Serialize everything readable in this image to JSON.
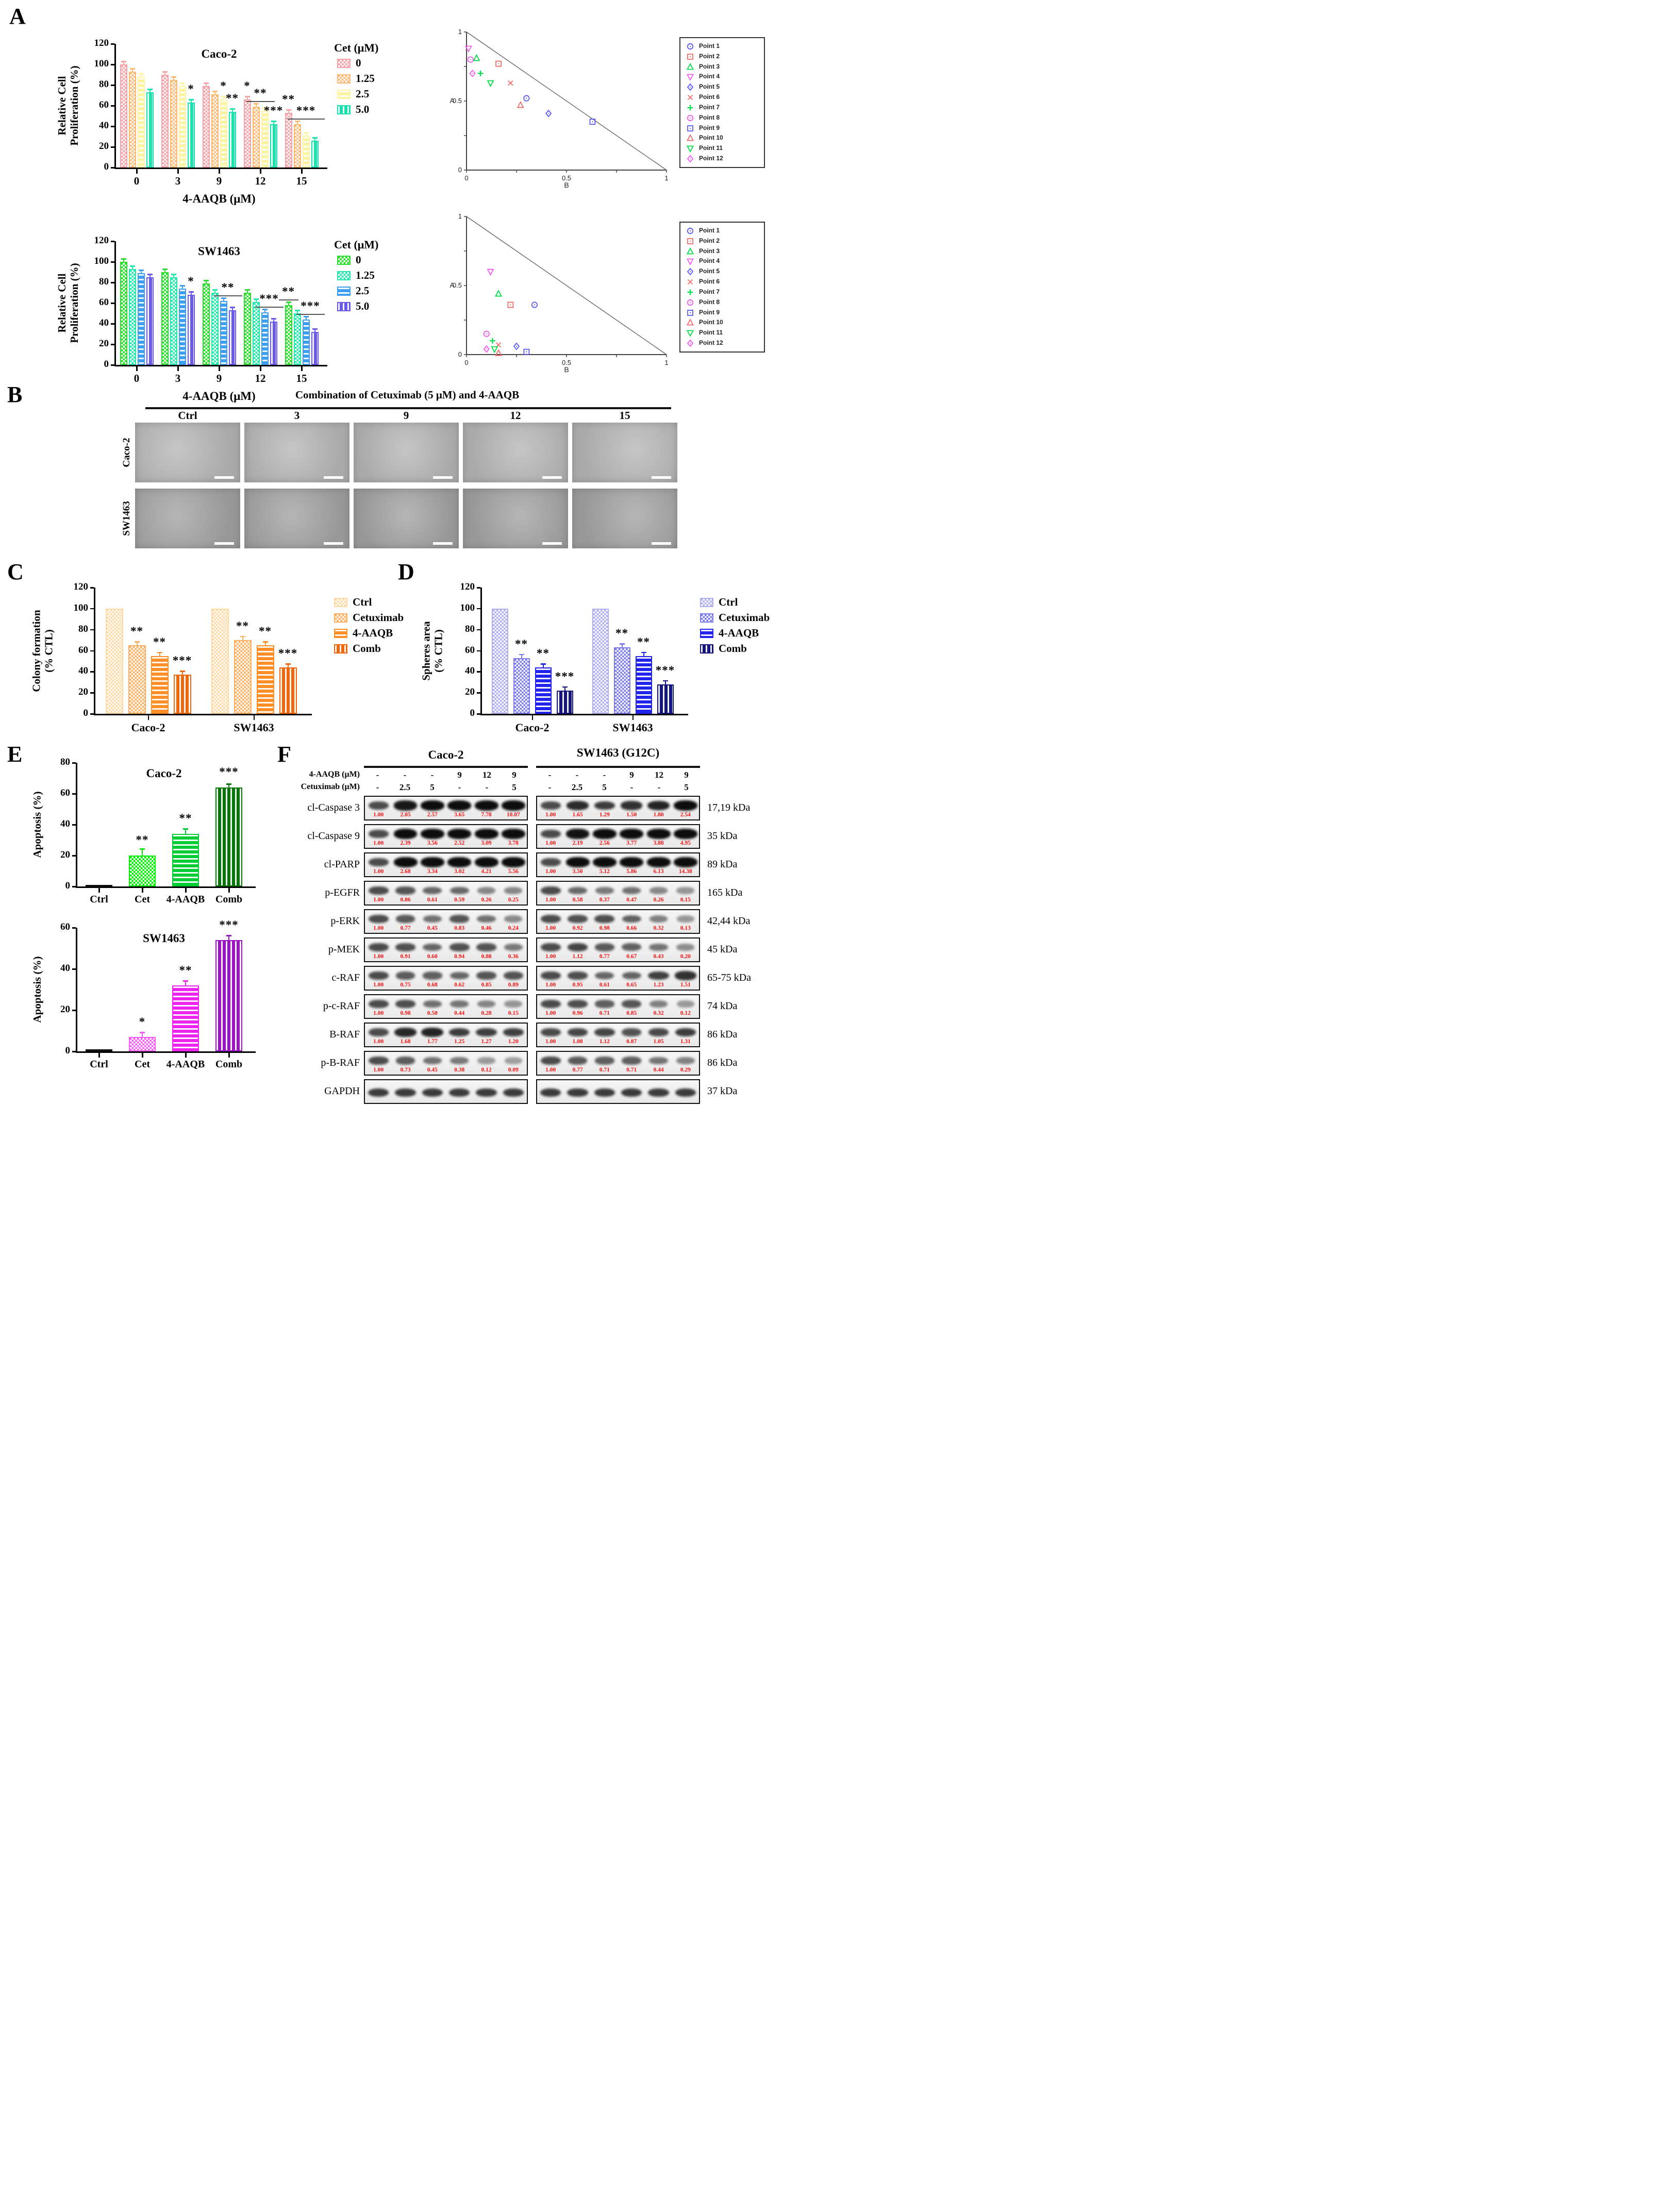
{
  "figure": {
    "panels": {
      "a": "A",
      "b": "B",
      "c": "C",
      "d": "D",
      "e": "E",
      "f": "F"
    }
  },
  "panel_b": {
    "title": "Combination of Cetuximab (5 μM) and 4-AAQB",
    "columns": [
      "Ctrl",
      "3",
      "9",
      "12",
      "15"
    ],
    "rows": [
      "Caco-2",
      "SW1463"
    ]
  },
  "panel_f": {
    "cell_lines": [
      "Caco-2",
      "SW1463 (G12C)"
    ],
    "condition_rows": [
      {
        "label": "4-AAQB (μM)",
        "values": [
          "-",
          "-",
          "-",
          "9",
          "12",
          "9"
        ]
      },
      {
        "label": "Cetuximab (μM)",
        "values": [
          "-",
          "2.5",
          "5",
          "-",
          "-",
          "5"
        ]
      }
    ],
    "value_color": "#FF1010",
    "rows": [
      {
        "protein": "cl-Caspase 3",
        "kda": "17,19 kDa",
        "caco2": [
          "1.00",
          "2.05",
          "2.57",
          "3.65",
          "7.78",
          "10.07"
        ],
        "sw1463": [
          "1.00",
          "1.65",
          "1.29",
          "1.50",
          "1.80",
          "2.54"
        ]
      },
      {
        "protein": "cl-Caspase 9",
        "kda": "35 kDa",
        "caco2": [
          "1.00",
          "2.39",
          "3.56",
          "2.52",
          "3.09",
          "3.78"
        ],
        "sw1463": [
          "1.00",
          "2.19",
          "2.56",
          "3.77",
          "3.88",
          "4.95"
        ]
      },
      {
        "protein": "cl-PARP",
        "kda": "89 kDa",
        "caco2": [
          "1.00",
          "2.68",
          "3.34",
          "3.02",
          "4.21",
          "5.56"
        ],
        "sw1463": [
          "1.00",
          "3.50",
          "5.12",
          "5.86",
          "6.13",
          "14.38"
        ]
      },
      {
        "protein": "p-EGFR",
        "kda": "165 kDa",
        "caco2": [
          "1.00",
          "0.86",
          "0.61",
          "0.59",
          "0.26",
          "0.25"
        ],
        "sw1463": [
          "1.00",
          "0.58",
          "0.37",
          "0.47",
          "0.26",
          "0.15"
        ]
      },
      {
        "protein": "p-ERK",
        "kda": "42,44 kDa",
        "caco2": [
          "1.00",
          "0.77",
          "0.45",
          "0.83",
          "0.46",
          "0.24"
        ],
        "sw1463": [
          "1.00",
          "0.92",
          "0.98",
          "0.66",
          "0.32",
          "0.13"
        ]
      },
      {
        "protein": "p-MEK",
        "kda": "45 kDa",
        "caco2": [
          "1.00",
          "0.91",
          "0.60",
          "0.94",
          "0.88",
          "0.36"
        ],
        "sw1463": [
          "1.00",
          "1.12",
          "0.77",
          "0.67",
          "0.43",
          "0.20"
        ]
      },
      {
        "protein": "c-RAF",
        "kda": "65-75 kDa",
        "caco2": [
          "1.00",
          "0.75",
          "0.68",
          "0.62",
          "0.85",
          "0.89"
        ],
        "sw1463": [
          "1.00",
          "0.95",
          "0.61",
          "0.65",
          "1.23",
          "1.51"
        ]
      },
      {
        "protein": "p-c-RAF",
        "kda": "74 kDa",
        "caco2": [
          "1.00",
          "0.98",
          "0.50",
          "0.44",
          "0.28",
          "0.15"
        ],
        "sw1463": [
          "1.00",
          "0.96",
          "0.71",
          "0.85",
          "0.32",
          "0.12"
        ]
      },
      {
        "protein": "B-RAF",
        "kda": "86 kDa",
        "caco2": [
          "1.00",
          "1.68",
          "1.77",
          "1.25",
          "1.27",
          "1.20"
        ],
        "sw1463": [
          "1.00",
          "1.08",
          "1.12",
          "0.87",
          "1.05",
          "1.31"
        ]
      },
      {
        "protein": "p-B-RAF",
        "kda": "86 kDa",
        "caco2": [
          "1.00",
          "0.73",
          "0.45",
          "0.38",
          "0.12",
          "0.09"
        ],
        "sw1463": [
          "1.00",
          "0.77",
          "0.71",
          "0.71",
          "0.44",
          "0.29"
        ]
      },
      {
        "protein": "GAPDH",
        "kda": "37 kDa",
        "caco2": [],
        "sw1463": []
      }
    ]
  },
  "chart_data": [
    {
      "id": "a1",
      "type": "bar",
      "title": "Caco-2",
      "ylabel": [
        "Relative Cell",
        "Proliferation (%)"
      ],
      "xlabel": "4-AAQB (μM)",
      "ylim": [
        0,
        120
      ],
      "ystep": 20,
      "error": 2.5,
      "categories": [
        "0",
        "3",
        "9",
        "12",
        "15"
      ],
      "legend_title": "Cet (μM)",
      "series": [
        {
          "name": "0",
          "color": "#F9A3A9",
          "pattern": "checker",
          "values": [
            100,
            90,
            79,
            66,
            53
          ]
        },
        {
          "name": "1.25",
          "color": "#FBBB76",
          "pattern": "checker",
          "values": [
            93,
            85,
            71,
            59,
            42
          ]
        },
        {
          "name": "2.5",
          "color": "#FCF3A3",
          "pattern": "hlines",
          "values": [
            88,
            79,
            66,
            55,
            31
          ]
        },
        {
          "name": "5.0",
          "color": "#19E2AE",
          "pattern": "vlines",
          "values": [
            73,
            63,
            54,
            42,
            26
          ]
        }
      ],
      "sig": [
        {
          "g": 1,
          "s": 3,
          "label": "*"
        },
        {
          "g": 2,
          "s": 2,
          "label": "*"
        },
        {
          "g": 2,
          "s": 3,
          "label": "**"
        },
        {
          "g": 3,
          "s": 0,
          "label": "*"
        },
        {
          "g": 3,
          "s": 1,
          "label": "**",
          "span": 2,
          "underline": true
        },
        {
          "g": 3,
          "s": 3,
          "label": "***"
        },
        {
          "g": 4,
          "s": 0,
          "label": "**"
        },
        {
          "g": 4,
          "s": 1,
          "label": "***",
          "span": 3,
          "underline": true
        }
      ]
    },
    {
      "id": "iso1",
      "type": "scatter",
      "xlabel": "B",
      "ylabel": "A",
      "xlim": [
        0,
        1
      ],
      "ylim": [
        0,
        1
      ],
      "diagonal": true,
      "points": [
        {
          "name": "Point 1",
          "marker": "circle",
          "color": "#5B5BF2",
          "x": 0.3,
          "y": 0.52
        },
        {
          "name": "Point 2",
          "marker": "square",
          "color": "#F26B6B",
          "x": 0.16,
          "y": 0.77
        },
        {
          "name": "Point 3",
          "marker": "triangle-up",
          "color": "#00DC46",
          "x": 0.05,
          "y": 0.81
        },
        {
          "name": "Point 4",
          "marker": "triangle-down",
          "color": "#F25CF2",
          "x": 0.01,
          "y": 0.88
        },
        {
          "name": "Point 5",
          "marker": "diamond",
          "color": "#5B5BF2",
          "x": 0.41,
          "y": 0.41
        },
        {
          "name": "Point 6",
          "marker": "x",
          "color": "#F26B6B",
          "x": 0.22,
          "y": 0.63
        },
        {
          "name": "Point 7",
          "marker": "plus",
          "color": "#00DC46",
          "x": 0.07,
          "y": 0.7
        },
        {
          "name": "Point 8",
          "marker": "circle",
          "color": "#F25CF2",
          "x": 0.02,
          "y": 0.8
        },
        {
          "name": "Point 9",
          "marker": "square",
          "color": "#5B5BF2",
          "x": 0.63,
          "y": 0.35
        },
        {
          "name": "Point 10",
          "marker": "triangle-up",
          "color": "#F26B6B",
          "x": 0.27,
          "y": 0.47
        },
        {
          "name": "Point 11",
          "marker": "triangle-down",
          "color": "#00DC46",
          "x": 0.12,
          "y": 0.63
        },
        {
          "name": "Point 12",
          "marker": "diamond",
          "color": "#F25CF2",
          "x": 0.03,
          "y": 0.7
        }
      ]
    },
    {
      "id": "a2",
      "type": "bar",
      "title": "SW1463",
      "ylabel": [
        "Relative Cell",
        "Proliferation (%)"
      ],
      "xlabel": "4-AAQB (μM)",
      "ylim": [
        0,
        120
      ],
      "ystep": 20,
      "error": 2.5,
      "categories": [
        "0",
        "3",
        "9",
        "12",
        "15"
      ],
      "legend_title": "Cet (μM)",
      "series": [
        {
          "name": "0",
          "color": "#2ADF2A",
          "pattern": "checker",
          "values": [
            100,
            90,
            79,
            70,
            58
          ]
        },
        {
          "name": "1.25",
          "color": "#25E8AD",
          "pattern": "checker",
          "values": [
            93,
            85,
            70,
            61,
            50
          ]
        },
        {
          "name": "2.5",
          "color": "#3E9FF2",
          "pattern": "hlines",
          "values": [
            89,
            74,
            62,
            51,
            44
          ]
        },
        {
          "name": "5.0",
          "color": "#6A5AEB",
          "pattern": "vlines",
          "values": [
            85,
            68,
            53,
            42,
            32
          ]
        }
      ],
      "sig": [
        {
          "g": 1,
          "s": 3,
          "label": "*"
        },
        {
          "g": 2,
          "s": 2,
          "label": "**",
          "span": 2,
          "underline": true
        },
        {
          "g": 3,
          "s": 2,
          "label": "***",
          "span": 2,
          "underline": true
        },
        {
          "g": 4,
          "s": 0,
          "label": "**",
          "underline": true
        },
        {
          "g": 4,
          "s": 2,
          "label": "***",
          "span": 2,
          "underline": true
        }
      ]
    },
    {
      "id": "iso2",
      "type": "scatter",
      "xlabel": "B",
      "ylabel": "A",
      "xlim": [
        0,
        1
      ],
      "ylim": [
        0,
        1
      ],
      "diagonal": true,
      "points": [
        {
          "name": "Point 1",
          "marker": "circle",
          "color": "#5B5BF2",
          "x": 0.34,
          "y": 0.36
        },
        {
          "name": "Point 2",
          "marker": "square",
          "color": "#F26B6B",
          "x": 0.22,
          "y": 0.36
        },
        {
          "name": "Point 3",
          "marker": "triangle-up",
          "color": "#00DC46",
          "x": 0.16,
          "y": 0.44
        },
        {
          "name": "Point 4",
          "marker": "triangle-down",
          "color": "#F25CF2",
          "x": 0.12,
          "y": 0.6
        },
        {
          "name": "Point 5",
          "marker": "diamond",
          "color": "#5B5BF2",
          "x": 0.25,
          "y": 0.06
        },
        {
          "name": "Point 6",
          "marker": "x",
          "color": "#F26B6B",
          "x": 0.16,
          "y": 0.07
        },
        {
          "name": "Point 7",
          "marker": "plus",
          "color": "#00DC46",
          "x": 0.13,
          "y": 0.1
        },
        {
          "name": "Point 8",
          "marker": "circle",
          "color": "#F25CF2",
          "x": 0.1,
          "y": 0.15
        },
        {
          "name": "Point 9",
          "marker": "square",
          "color": "#5B5BF2",
          "x": 0.3,
          "y": 0.02
        },
        {
          "name": "Point 10",
          "marker": "triangle-up",
          "color": "#F26B6B",
          "x": 0.16,
          "y": 0.01
        },
        {
          "name": "Point 11",
          "marker": "triangle-down",
          "color": "#00DC46",
          "x": 0.14,
          "y": 0.04
        },
        {
          "name": "Point 12",
          "marker": "diamond",
          "color": "#F25CF2",
          "x": 0.1,
          "y": 0.04
        }
      ]
    },
    {
      "id": "c",
      "type": "bar",
      "title": "",
      "ylabel": [
        "Colony formation",
        "(% CTL)"
      ],
      "xlabel": "",
      "ylim": [
        0,
        120
      ],
      "ystep": 20,
      "error": 3,
      "categories": [
        "Caco-2",
        "SW1463"
      ],
      "legend_title": "",
      "series": [
        {
          "name": "Ctrl",
          "color": "#FFD9A3",
          "pattern": "checker",
          "values": [
            100,
            100
          ],
          "noerr": true
        },
        {
          "name": "Cetuximab",
          "color": "#FFAF61",
          "pattern": "checker",
          "values": [
            65,
            70
          ]
        },
        {
          "name": "4-AAQB",
          "color": "#FF8E27",
          "pattern": "hlines",
          "values": [
            55,
            65
          ]
        },
        {
          "name": "Comb",
          "color": "#F0680D",
          "pattern": "vlines",
          "values": [
            37,
            44
          ]
        }
      ],
      "sig": [
        {
          "g": 0,
          "s": 1,
          "label": "**"
        },
        {
          "g": 0,
          "s": 2,
          "label": "**"
        },
        {
          "g": 0,
          "s": 3,
          "label": "***"
        },
        {
          "g": 1,
          "s": 1,
          "label": "**"
        },
        {
          "g": 1,
          "s": 2,
          "label": "**"
        },
        {
          "g": 1,
          "s": 3,
          "label": "***"
        }
      ]
    },
    {
      "id": "d",
      "type": "bar",
      "title": "",
      "ylabel": [
        "Spheres area",
        "(% CTL)"
      ],
      "xlabel": "",
      "ylim": [
        0,
        120
      ],
      "ystep": 20,
      "error": 3,
      "categories": [
        "Caco-2",
        "SW1463"
      ],
      "legend_title": "",
      "series": [
        {
          "name": "Ctrl",
          "color": "#AEAEF0",
          "pattern": "checker",
          "values": [
            100,
            100
          ],
          "noerr": true
        },
        {
          "name": "Cetuximab",
          "color": "#7B7BE9",
          "pattern": "checker",
          "values": [
            53,
            63
          ]
        },
        {
          "name": "4-AAQB",
          "color": "#2323EE",
          "pattern": "hlines",
          "values": [
            44,
            55
          ]
        },
        {
          "name": "Comb",
          "color": "#15157E",
          "pattern": "vlines",
          "values": [
            22,
            28
          ]
        }
      ],
      "sig": [
        {
          "g": 0,
          "s": 1,
          "label": "**"
        },
        {
          "g": 0,
          "s": 2,
          "label": "**"
        },
        {
          "g": 0,
          "s": 3,
          "label": "***"
        },
        {
          "g": 1,
          "s": 1,
          "label": "**"
        },
        {
          "g": 1,
          "s": 2,
          "label": "**"
        },
        {
          "g": 1,
          "s": 3,
          "label": "***"
        }
      ]
    },
    {
      "id": "e1",
      "type": "bar",
      "title": "Caco-2",
      "ylabel": [
        "Apoptosis (%)"
      ],
      "xlabel": "",
      "ylim": [
        0,
        80
      ],
      "ystep": 20,
      "error": 3,
      "categories": [
        "Ctrl",
        "Cet",
        "4-AAQB",
        "Comb"
      ],
      "legend_title": "",
      "bars": [
        {
          "color": "#111111",
          "pattern": "solid",
          "value": 1,
          "err": 0
        },
        {
          "color": "#00EE00",
          "pattern": "checker",
          "value": 20,
          "err": 4
        },
        {
          "color": "#00CC33",
          "pattern": "hlines",
          "value": 34,
          "err": 3
        },
        {
          "color": "#067506",
          "pattern": "vlines",
          "value": 64,
          "err": 2
        }
      ],
      "sig": [
        {
          "g": 1,
          "s": 0,
          "label": "**"
        },
        {
          "g": 2,
          "s": 0,
          "label": "**"
        },
        {
          "g": 3,
          "s": 0,
          "label": "***"
        }
      ]
    },
    {
      "id": "e2",
      "type": "bar",
      "title": "SW1463",
      "ylabel": [
        "Apoptosis (%)"
      ],
      "xlabel": "",
      "ylim": [
        0,
        60
      ],
      "ystep": 20,
      "error": 2,
      "categories": [
        "Ctrl",
        "Cet",
        "4-AAQB",
        "Comb"
      ],
      "legend_title": "",
      "bars": [
        {
          "color": "#111111",
          "pattern": "solid",
          "value": 1,
          "err": 0
        },
        {
          "color": "#F55CF5",
          "pattern": "checker",
          "value": 7,
          "err": 2
        },
        {
          "color": "#EE22EE",
          "pattern": "hlines",
          "value": 32,
          "err": 2
        },
        {
          "color": "#9B14C4",
          "pattern": "vlines",
          "value": 54,
          "err": 2
        }
      ],
      "sig": [
        {
          "g": 1,
          "s": 0,
          "label": "*"
        },
        {
          "g": 2,
          "s": 0,
          "label": "**"
        },
        {
          "g": 3,
          "s": 0,
          "label": "***"
        }
      ]
    }
  ]
}
